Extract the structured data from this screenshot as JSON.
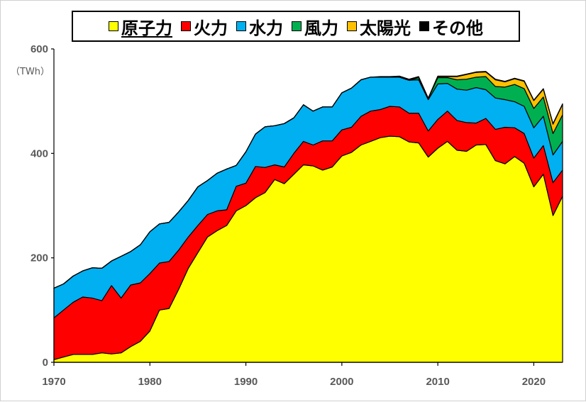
{
  "chart_data": {
    "type": "area",
    "stacked": true,
    "title": "",
    "xlabel": "",
    "ylabel": "（TWh）",
    "ylim": [
      0,
      600
    ],
    "xlim": [
      1970,
      2023
    ],
    "y_ticks": [
      0,
      200,
      400,
      600
    ],
    "x_ticks": [
      1970,
      1980,
      1990,
      2000,
      2010,
      2020
    ],
    "grid": false,
    "legend_position": "top",
    "x": [
      1970,
      1971,
      1972,
      1973,
      1974,
      1975,
      1976,
      1977,
      1978,
      1979,
      1980,
      1981,
      1982,
      1983,
      1984,
      1985,
      1986,
      1987,
      1988,
      1989,
      1990,
      1991,
      1992,
      1993,
      1994,
      1995,
      1996,
      1997,
      1998,
      1999,
      2000,
      2001,
      2002,
      2003,
      2004,
      2005,
      2006,
      2007,
      2008,
      2009,
      2010,
      2011,
      2012,
      2013,
      2014,
      2015,
      2016,
      2017,
      2018,
      2019,
      2020,
      2021,
      2022,
      2023
    ],
    "series": [
      {
        "name": "原子力",
        "color": "#ffff00",
        "values": [
          5,
          10,
          15,
          15,
          15,
          18,
          16,
          18,
          30,
          40,
          60,
          100,
          103,
          140,
          180,
          210,
          240,
          252,
          262,
          290,
          300,
          315,
          325,
          350,
          342,
          360,
          378,
          376,
          368,
          374,
          395,
          402,
          416,
          423,
          430,
          433,
          432,
          422,
          420,
          393,
          410,
          423,
          406,
          404,
          416,
          417,
          386,
          380,
          394,
          381,
          336,
          360,
          281,
          318
        ]
      },
      {
        "name": "火力",
        "color": "#ff0000",
        "values": [
          80,
          90,
          100,
          110,
          108,
          100,
          131,
          105,
          118,
          112,
          110,
          90,
          90,
          75,
          60,
          52,
          43,
          38,
          30,
          47,
          43,
          60,
          48,
          28,
          32,
          40,
          45,
          40,
          56,
          50,
          50,
          48,
          55,
          58,
          54,
          57,
          57,
          55,
          57,
          50,
          55,
          58,
          57,
          55,
          42,
          50,
          60,
          70,
          55,
          57,
          55,
          55,
          63,
          50
        ]
      },
      {
        "name": "水力",
        "color": "#00b0f0",
        "values": [
          57,
          50,
          50,
          50,
          58,
          62,
          47,
          80,
          64,
          73,
          80,
          75,
          75,
          73,
          70,
          74,
          65,
          72,
          78,
          40,
          60,
          62,
          78,
          75,
          83,
          68,
          70,
          65,
          65,
          65,
          71,
          75,
          70,
          65,
          62,
          56,
          57,
          63,
          64,
          60,
          68,
          53,
          60,
          62,
          68,
          55,
          60,
          53,
          50,
          52,
          58,
          56,
          53,
          55
        ]
      },
      {
        "name": "風力",
        "color": "#00b050",
        "values": [
          0,
          0,
          0,
          0,
          0,
          0,
          0,
          0,
          0,
          0,
          0,
          0,
          0,
          0,
          0,
          0,
          0,
          0,
          0,
          0,
          0,
          0,
          0,
          0,
          0,
          0,
          0,
          0,
          0,
          0,
          0,
          0,
          0,
          0,
          0,
          0,
          0,
          0,
          4,
          2,
          12,
          11,
          18,
          21,
          20,
          25,
          22,
          24,
          33,
          34,
          37,
          37,
          41,
          51
        ]
      },
      {
        "name": "太陽光",
        "color": "#ffc000",
        "values": [
          0,
          0,
          0,
          0,
          0,
          0,
          0,
          0,
          0,
          0,
          0,
          0,
          0,
          0,
          0,
          0,
          0,
          0,
          0,
          0,
          0,
          0,
          0,
          0,
          0,
          0,
          0,
          0,
          0,
          0,
          0,
          0,
          0,
          0,
          0,
          0,
          0,
          0,
          0,
          0,
          2,
          2,
          6,
          9,
          9,
          9,
          13,
          10,
          11,
          14,
          15,
          15,
          18,
          20
        ]
      },
      {
        "name": "その他",
        "color": "#000000",
        "values": [
          0,
          0,
          0,
          0,
          0,
          0,
          0,
          0,
          0,
          0,
          0,
          0,
          0,
          0,
          0,
          0,
          0,
          0,
          0,
          0,
          0,
          0,
          0,
          0,
          0,
          0,
          0,
          0,
          0,
          0,
          0,
          0,
          0,
          0,
          1,
          1,
          2,
          2,
          2,
          1,
          1,
          1,
          1,
          1,
          1,
          1,
          1,
          1,
          1,
          1,
          1,
          1,
          1,
          1
        ]
      }
    ]
  }
}
